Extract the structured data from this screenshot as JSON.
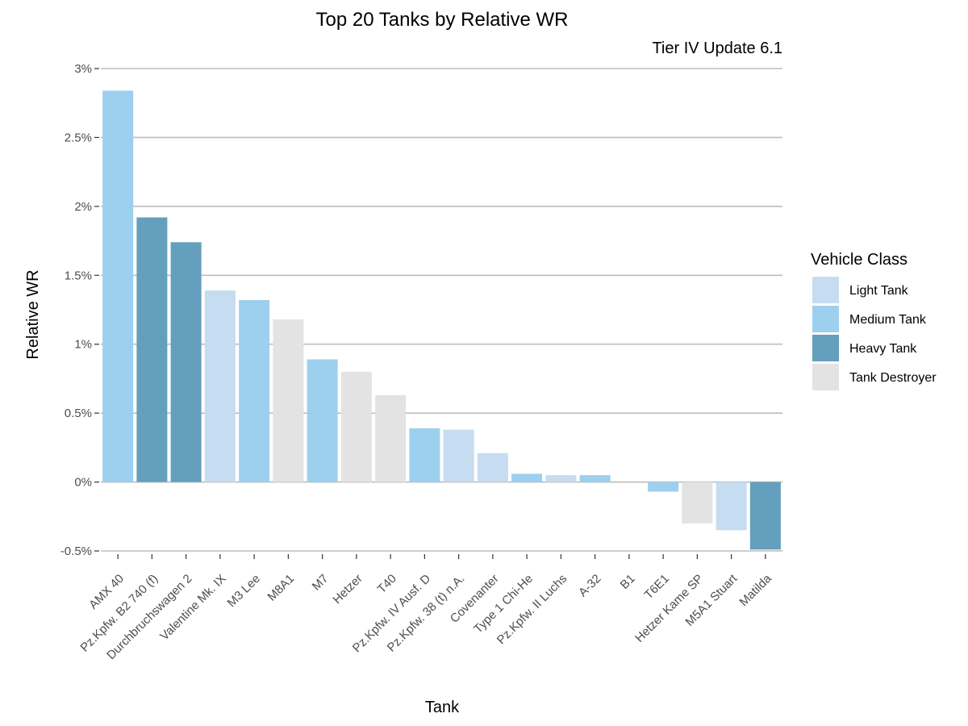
{
  "chart_data": {
    "type": "bar",
    "title": "Top 20 Tanks by Relative WR",
    "subtitle": "Tier IV Update 6.1",
    "xlabel": "Tank",
    "ylabel": "Relative WR",
    "ylim": [
      -0.5,
      3.0
    ],
    "yticks": [
      "-0.5%",
      "0%",
      "0.5%",
      "1%",
      "1.5%",
      "2%",
      "2.5%",
      "3%"
    ],
    "ytick_values": [
      -0.5,
      0,
      0.5,
      1.0,
      1.5,
      2.0,
      2.5,
      3.0
    ],
    "grid": true,
    "legend": {
      "title": "Vehicle Class",
      "placement": "right",
      "entries": [
        {
          "label": "Light Tank",
          "color": "#c6dcf1"
        },
        {
          "label": "Medium Tank",
          "color": "#9dd0ee"
        },
        {
          "label": "Heavy Tank",
          "color": "#649fbd"
        },
        {
          "label": "Tank Destroyer",
          "color": "#e3e3e3"
        }
      ]
    },
    "categories": [
      "AMX 40",
      "Pz.Kpfw. B2 740 (f)",
      "Durchbruchswagen 2",
      "Valentine Mk. IX",
      "M3 Lee",
      "M8A1",
      "M7",
      "Hetzer",
      "T40",
      "Pz.Kpfw. IV Ausf. D",
      "Pz.Kpfw. 38 (t) n.A.",
      "Covenanter",
      "Type 1 Chi-He",
      "Pz.Kpfw. II Luchs",
      "A-32",
      "B1",
      "T6E1",
      "Hetzer Kame SP",
      "M5A1 Stuart",
      "Matilda"
    ],
    "values": [
      2.84,
      1.92,
      1.74,
      1.39,
      1.32,
      1.18,
      0.89,
      0.8,
      0.63,
      0.39,
      0.38,
      0.21,
      0.06,
      0.05,
      0.05,
      0.0,
      -0.07,
      -0.3,
      -0.35,
      -0.49
    ],
    "classes": [
      "Medium Tank",
      "Heavy Tank",
      "Heavy Tank",
      "Light Tank",
      "Medium Tank",
      "Tank Destroyer",
      "Medium Tank",
      "Tank Destroyer",
      "Tank Destroyer",
      "Medium Tank",
      "Light Tank",
      "Light Tank",
      "Medium Tank",
      "Light Tank",
      "Medium Tank",
      "Heavy Tank",
      "Medium Tank",
      "Tank Destroyer",
      "Light Tank",
      "Heavy Tank"
    ]
  }
}
